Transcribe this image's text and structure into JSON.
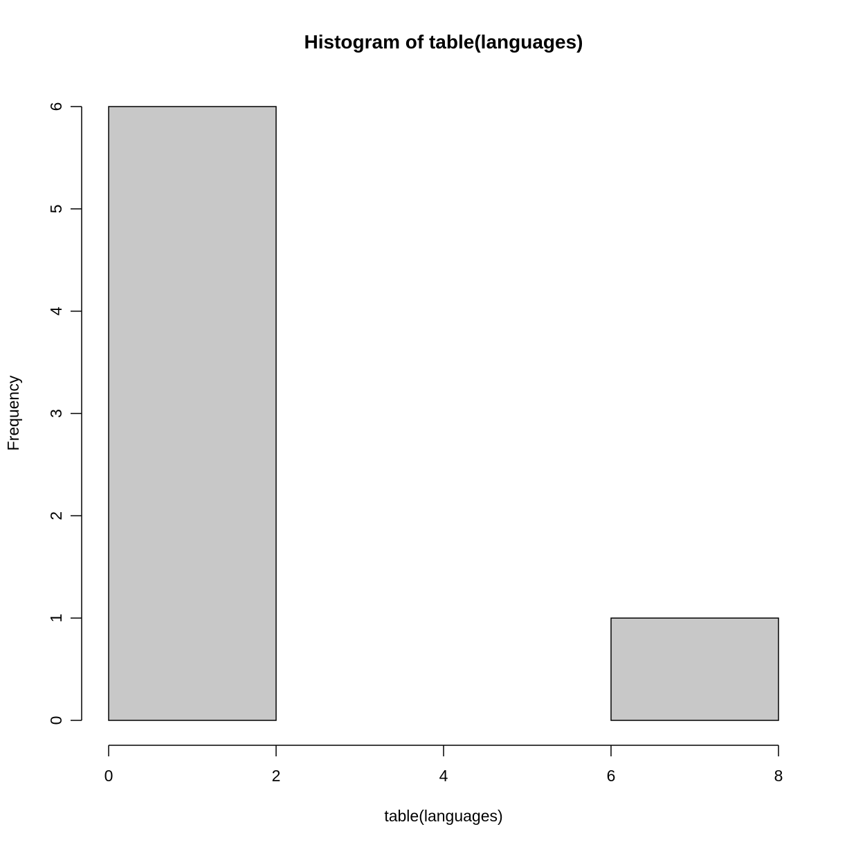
{
  "chart_data": {
    "type": "bar",
    "title": "Histogram of table(languages)",
    "xlabel": "table(languages)",
    "ylabel": "Frequency",
    "bins": [
      {
        "x0": 0,
        "x1": 2,
        "count": 6
      },
      {
        "x0": 2,
        "x1": 4,
        "count": 0
      },
      {
        "x0": 4,
        "x1": 6,
        "count": 0
      },
      {
        "x0": 6,
        "x1": 8,
        "count": 1
      }
    ],
    "xlim": [
      0,
      8
    ],
    "ylim": [
      0,
      6
    ],
    "x_ticks": [
      "0",
      "2",
      "4",
      "6",
      "8"
    ],
    "y_ticks": [
      "0",
      "1",
      "2",
      "3",
      "4",
      "5",
      "6"
    ],
    "bar_color": "#c8c8c8",
    "grid": false
  }
}
